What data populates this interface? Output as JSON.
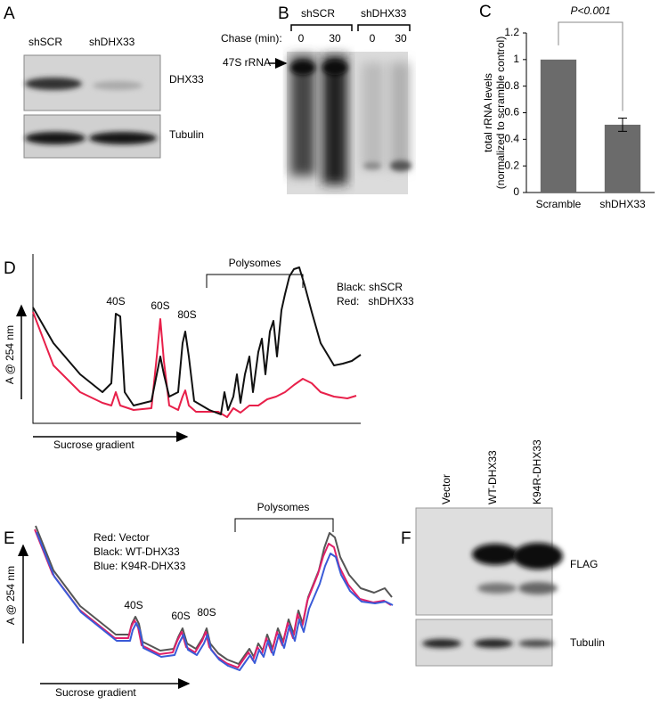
{
  "panels": {
    "labels": [
      "A",
      "B",
      "C",
      "D",
      "E",
      "F"
    ]
  },
  "panel_a": {
    "lanes": [
      "shSCR",
      "shDHX33"
    ],
    "bands": [
      "DHX33",
      "Tubulin"
    ]
  },
  "panel_b": {
    "groups": [
      "shSCR",
      "shDHX33"
    ],
    "chase_label": "Chase (min):",
    "times": [
      "0",
      "30",
      "0",
      "30"
    ],
    "marker": "47S rRNA"
  },
  "chart_data": {
    "type": "bar",
    "categories": [
      "Scramble",
      "shDHX33"
    ],
    "values": [
      1,
      0.51
    ],
    "errors": [
      null,
      0.05
    ],
    "color": "#6b6b6b",
    "ylim": [
      0,
      1.2
    ],
    "yticks": [
      0,
      0.2,
      0.4,
      0.6,
      0.8,
      1,
      1.2
    ],
    "ylabel": [
      "total rRNA levels",
      "(normalized to scramble control)"
    ],
    "annotation": "P<0.001"
  },
  "panel_d": {
    "bracket": "Polysomes",
    "legend": [
      "Black: shSCR",
      "Red:   shDHX33"
    ],
    "peaks": [
      "40S",
      "60S",
      "80S"
    ],
    "y_axis": "A @ 254 nm",
    "x_axis": "Sucrose gradient"
  },
  "panel_e": {
    "legend": [
      "Red: Vector",
      "Black: WT-DHX33",
      "Blue: K94R-DHX33"
    ],
    "bracket": "Polysomes",
    "peaks": [
      "40S",
      "60S",
      "80S"
    ],
    "y_axis": "A @ 254 nm",
    "x_axis": "Sucrose gradient"
  },
  "panel_f": {
    "lanes": [
      "Vector",
      "WT-DHX33",
      "K94R-DHX33"
    ],
    "bands": [
      "FLAG",
      "Tubulin"
    ]
  }
}
